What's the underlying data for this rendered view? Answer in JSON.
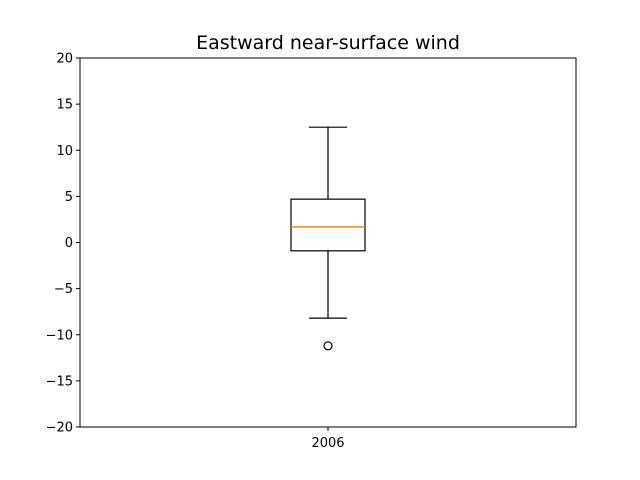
{
  "chart_data": {
    "type": "box",
    "title": "Eastward near-surface wind",
    "xlabel": "",
    "ylabel": "",
    "ylim": [
      -20,
      20
    ],
    "yticks": [
      -20,
      -15,
      -10,
      -5,
      0,
      5,
      10,
      15,
      20
    ],
    "grid": false,
    "categories": [
      "2006"
    ],
    "boxes": [
      {
        "label": "2006",
        "whisker_low": -8.2,
        "q1": -0.9,
        "median": 1.7,
        "q3": 4.7,
        "whisker_high": 12.5,
        "outliers": [
          -11.2
        ]
      }
    ],
    "colors": {
      "box": "#000000",
      "median": "#ff7f0e",
      "background": "#ffffff"
    }
  }
}
